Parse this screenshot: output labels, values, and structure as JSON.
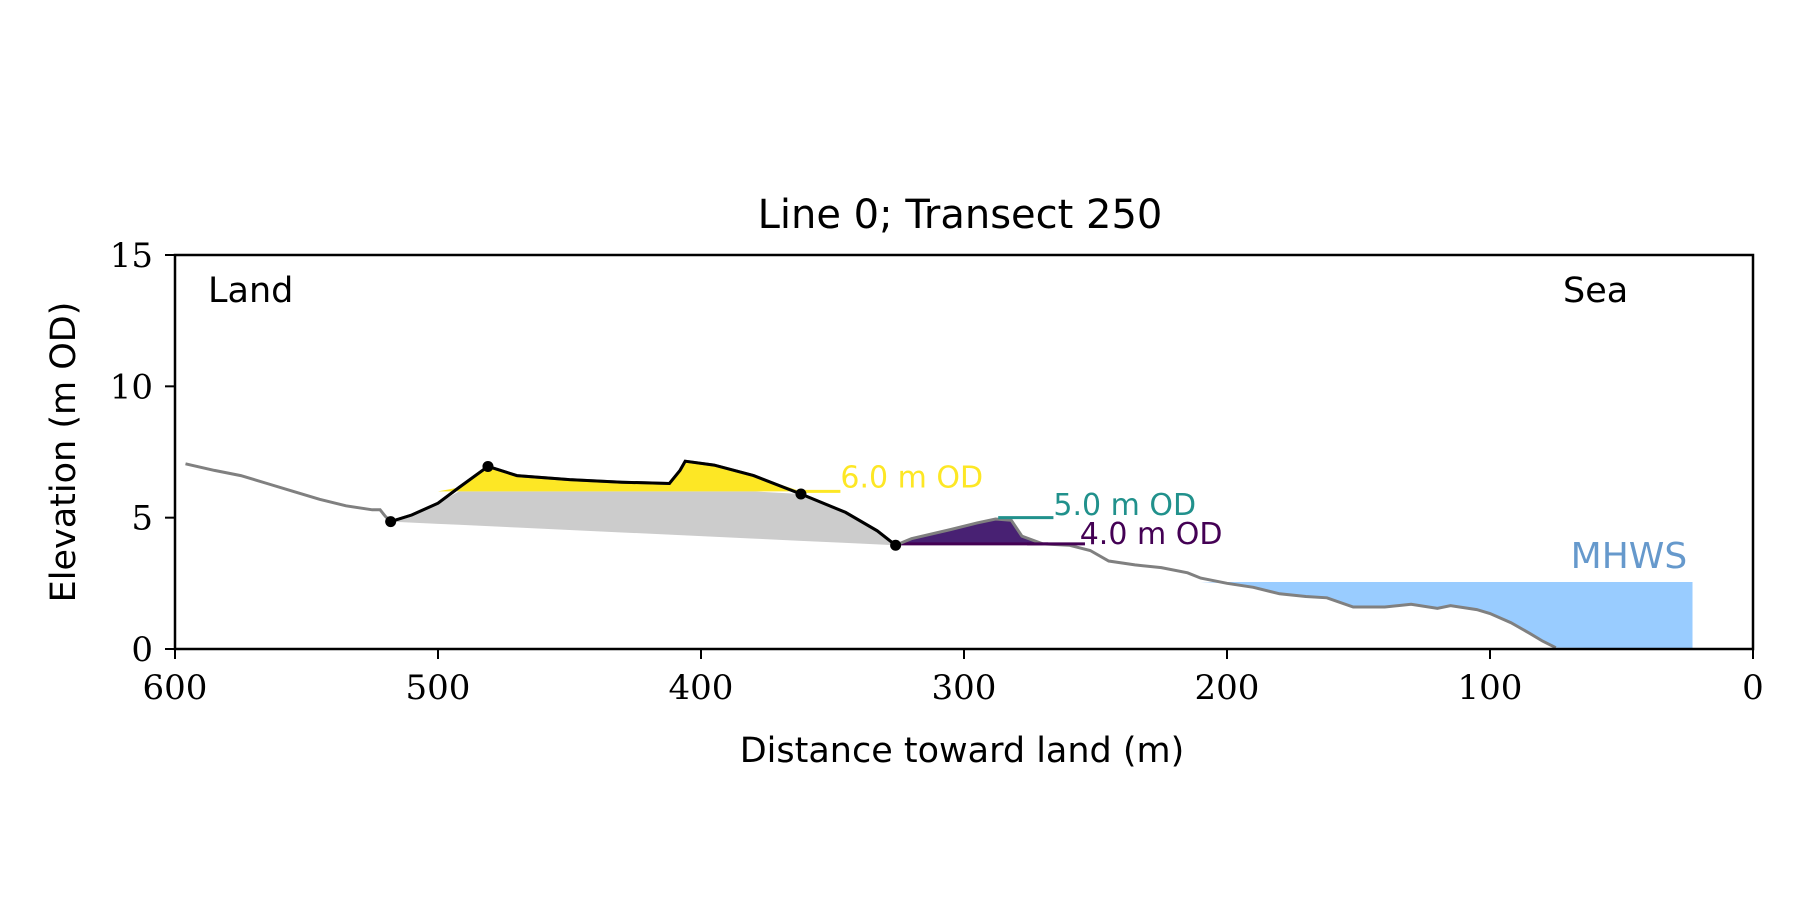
{
  "chart_data": {
    "type": "area",
    "title": "Line 0; Transect 250",
    "xlabel": "Distance toward land (m)",
    "ylabel": "Elevation (m OD)",
    "xlim": [
      600,
      0
    ],
    "ylim": [
      0,
      15
    ],
    "x_ticks": [
      "600",
      "500",
      "400",
      "300",
      "200",
      "100",
      "0"
    ],
    "y_ticks": [
      "0",
      "5",
      "10",
      "15"
    ],
    "grid": false,
    "annotations": {
      "land": "Land",
      "sea": "Sea",
      "mhws": "MHWS"
    },
    "mhws": {
      "elevation": 2.55,
      "x_from": 210,
      "x_to": 23
    },
    "profile": [
      [
        596,
        7.05
      ],
      [
        585,
        6.8
      ],
      [
        575,
        6.6
      ],
      [
        565,
        6.3
      ],
      [
        555,
        6.0
      ],
      [
        545,
        5.7
      ],
      [
        535,
        5.45
      ],
      [
        525,
        5.3
      ],
      [
        522,
        5.3
      ],
      [
        520,
        5.05
      ],
      [
        518,
        4.85
      ],
      [
        510,
        5.1
      ],
      [
        500,
        5.55
      ],
      [
        492,
        6.15
      ],
      [
        481,
        6.95
      ],
      [
        470,
        6.6
      ],
      [
        450,
        6.45
      ],
      [
        430,
        6.35
      ],
      [
        412,
        6.3
      ],
      [
        408,
        6.8
      ],
      [
        406,
        7.15
      ],
      [
        395,
        7.0
      ],
      [
        380,
        6.6
      ],
      [
        362,
        5.9
      ],
      [
        345,
        5.2
      ],
      [
        333,
        4.5
      ],
      [
        326,
        3.95
      ],
      [
        320,
        4.2
      ],
      [
        305,
        4.55
      ],
      [
        295,
        4.8
      ],
      [
        288,
        4.95
      ],
      [
        282,
        4.9
      ],
      [
        278,
        4.3
      ],
      [
        270,
        4.0
      ],
      [
        260,
        3.95
      ],
      [
        252,
        3.75
      ],
      [
        245,
        3.35
      ],
      [
        235,
        3.2
      ],
      [
        225,
        3.1
      ],
      [
        215,
        2.9
      ],
      [
        210,
        2.7
      ],
      [
        200,
        2.5
      ],
      [
        190,
        2.35
      ],
      [
        180,
        2.1
      ],
      [
        170,
        2.0
      ],
      [
        162,
        1.95
      ],
      [
        152,
        1.6
      ],
      [
        140,
        1.6
      ],
      [
        130,
        1.7
      ],
      [
        120,
        1.55
      ],
      [
        115,
        1.65
      ],
      [
        105,
        1.5
      ],
      [
        100,
        1.35
      ],
      [
        92,
        1.0
      ],
      [
        85,
        0.6
      ],
      [
        80,
        0.3
      ],
      [
        75,
        0.05
      ]
    ],
    "dune_points": [
      {
        "x": 518,
        "y": 4.85
      },
      {
        "x": 481,
        "y": 6.95
      },
      {
        "x": 362,
        "y": 5.9
      },
      {
        "x": 326,
        "y": 3.95
      }
    ],
    "series": [
      {
        "name": "6.0 m OD",
        "level": 6.0,
        "color": "#fde725",
        "label_x": 347,
        "label_y": 6.6
      },
      {
        "name": "5.0 m OD",
        "level": 5.0,
        "color": "#21918c",
        "label_x": 266,
        "label_y": 5.55
      },
      {
        "name": "4.0 m OD",
        "level": 4.0,
        "color": "#440154",
        "label_x": 256,
        "label_y": 4.45
      }
    ],
    "colors": {
      "profile": "#808080",
      "dune_outline": "#000000",
      "dune_base_fill": "#cccccc",
      "mhws_fill": "#99ccff",
      "mhws_text": "#6699cc"
    }
  }
}
